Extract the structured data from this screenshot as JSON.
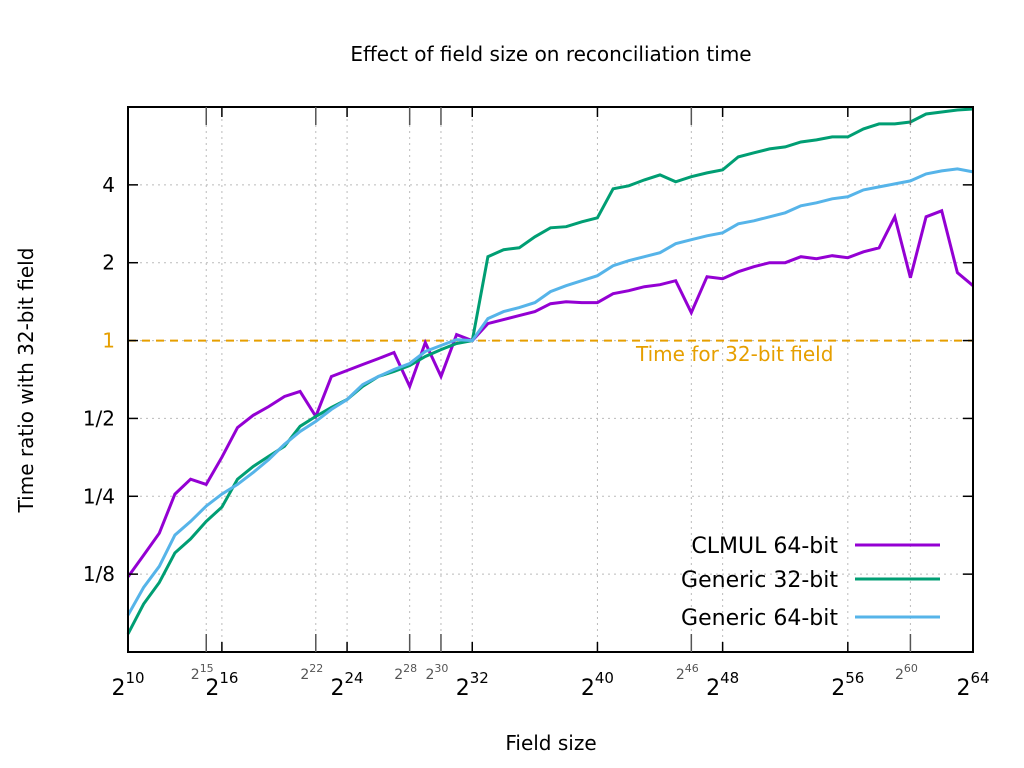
{
  "chart_data": {
    "type": "line",
    "title": "Effect of field size on reconciliation time",
    "xlabel": "Field size",
    "ylabel": "Time ratio with 32-bit field",
    "xscale": "log2",
    "yscale": "log2",
    "xlim_log2": [
      10,
      64
    ],
    "ylim": [
      0.0625,
      8
    ],
    "grid": true,
    "legend_position": "bottom-right",
    "x_major_ticks": [
      {
        "base": "2",
        "exp": "10",
        "v": 10
      },
      {
        "base": "2",
        "exp": "16",
        "v": 16
      },
      {
        "base": "2",
        "exp": "24",
        "v": 24
      },
      {
        "base": "2",
        "exp": "32",
        "v": 32
      },
      {
        "base": "2",
        "exp": "40",
        "v": 40
      },
      {
        "base": "2",
        "exp": "48",
        "v": 48
      },
      {
        "base": "2",
        "exp": "56",
        "v": 56
      },
      {
        "base": "2",
        "exp": "64",
        "v": 64
      }
    ],
    "x_minor_ticks": [
      {
        "base": "2",
        "exp": "15",
        "v": 15
      },
      {
        "base": "2",
        "exp": "22",
        "v": 22
      },
      {
        "base": "2",
        "exp": "28",
        "v": 28
      },
      {
        "base": "2",
        "exp": "30",
        "v": 30
      },
      {
        "base": "2",
        "exp": "46",
        "v": 46
      },
      {
        "base": "2",
        "exp": "60",
        "v": 60
      }
    ],
    "y_ticks": [
      {
        "label": "1/8",
        "v": 0.125
      },
      {
        "label": "1/4",
        "v": 0.25
      },
      {
        "label": "1/2",
        "v": 0.5
      },
      {
        "label": "1",
        "v": 1
      },
      {
        "label": "2",
        "v": 2
      },
      {
        "label": "4",
        "v": 4
      }
    ],
    "reference_line": {
      "value": 1,
      "label": "Time for 32-bit field",
      "color": "#e69f00"
    },
    "x_log2": [
      10,
      11,
      12,
      13,
      14,
      15,
      16,
      17,
      18,
      19,
      20,
      21,
      22,
      23,
      24,
      25,
      26,
      27,
      28,
      29,
      30,
      31,
      32,
      33,
      34,
      35,
      36,
      37,
      38,
      39,
      40,
      41,
      42,
      43,
      44,
      45,
      46,
      47,
      48,
      49,
      50,
      51,
      52,
      53,
      54,
      55,
      56,
      57,
      58,
      59,
      60,
      61,
      62,
      63,
      64
    ],
    "series": [
      {
        "name": "CLMUL 64-bit",
        "color": "#9400d3",
        "values": [
          0.122,
          0.148,
          0.18,
          0.255,
          0.291,
          0.278,
          0.354,
          0.461,
          0.514,
          0.556,
          0.608,
          0.636,
          0.509,
          0.726,
          0.766,
          0.808,
          0.852,
          0.899,
          0.665,
          0.982,
          0.726,
          1.055,
          1,
          1.163,
          1.205,
          1.249,
          1.294,
          1.389,
          1.414,
          1.402,
          1.402,
          1.518,
          1.559,
          1.616,
          1.645,
          1.704,
          1.282,
          1.766,
          1.735,
          1.846,
          1.93,
          2.0,
          2.0,
          2.11,
          2.072,
          2.129,
          2.091,
          2.205,
          2.285,
          3.01,
          1.75,
          3.01,
          3.175,
          1.83,
          1.63
        ]
      },
      {
        "name": "Generic 32-bit",
        "color": "#009e73",
        "values": [
          0.0734,
          0.0958,
          0.116,
          0.151,
          0.171,
          0.2,
          0.227,
          0.291,
          0.326,
          0.357,
          0.39,
          0.466,
          0.509,
          0.551,
          0.592,
          0.665,
          0.726,
          0.759,
          0.801,
          0.868,
          0.923,
          0.974,
          1,
          2.11,
          2.245,
          2.285,
          2.52,
          2.73,
          2.755,
          2.88,
          2.983,
          3.861,
          3.965,
          4.18,
          4.37,
          4.11,
          4.3,
          4.45,
          4.57,
          5.13,
          5.32,
          5.51,
          5.61,
          5.86,
          5.97,
          6.13,
          6.13,
          6.58,
          6.88,
          6.88,
          7.0,
          7.52,
          7.65,
          7.79,
          7.86
        ]
      },
      {
        "name": "Generic 64-bit",
        "color": "#56b4e9",
        "values": [
          0.0868,
          0.111,
          0.134,
          0.177,
          0.2,
          0.229,
          0.255,
          0.278,
          0.309,
          0.347,
          0.397,
          0.445,
          0.487,
          0.542,
          0.592,
          0.676,
          0.726,
          0.773,
          0.815,
          0.907,
          0.957,
          1.009,
          1,
          1.216,
          1.294,
          1.341,
          1.402,
          1.546,
          1.63,
          1.704,
          1.782,
          1.948,
          2.036,
          2.11,
          2.186,
          2.368,
          2.454,
          2.542,
          2.611,
          2.828,
          2.905,
          3.01,
          3.119,
          3.319,
          3.409,
          3.532,
          3.595,
          3.826,
          3.929,
          4.036,
          4.145,
          4.41,
          4.53,
          4.61,
          4.49
        ]
      }
    ]
  }
}
